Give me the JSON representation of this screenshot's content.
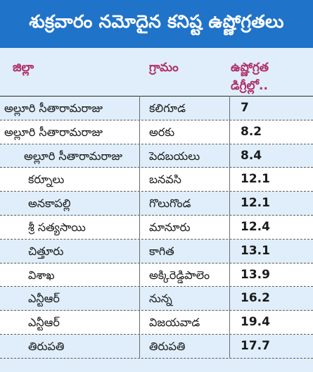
{
  "title": "శుక్రవారం నమోదైన కనిష్ట ఉష్ణోగ్రతలు",
  "headers": {
    "district": "జిల్లా",
    "village": "గ్రామం",
    "temp_line1": "ఉష్ణోగ్రత",
    "temp_line2": "డిగ్రీల్లో.."
  },
  "rows": [
    {
      "district": "అల్లూరి సీతారామరాజు",
      "village": "కలిగూడ",
      "temp": "7"
    },
    {
      "district": "అల్లూరి సీతారామరాజు",
      "village": "అరకు",
      "temp": "8.2"
    },
    {
      "district": "అల్లూరి సీతారామరాజు",
      "village": "పెదబయలు",
      "temp": "8.4"
    },
    {
      "district": "కర్నూలు",
      "village": "బనవసి",
      "temp": "12.1"
    },
    {
      "district": "అనకాపల్లి",
      "village": "గొలుగొండ",
      "temp": "12.1"
    },
    {
      "district": "శ్రీ సత్యసాయి",
      "village": "మానూరు",
      "temp": "12.4"
    },
    {
      "district": "చిత్తూరు",
      "village": "కాగిత",
      "temp": "13.1"
    },
    {
      "district": "విశాఖ",
      "village": "అక్కిరెడ్డిపాలెం",
      "temp": "13.9"
    },
    {
      "district": "ఎన్టీఆర్",
      "village": "నున్న",
      "temp": "16.2"
    },
    {
      "district": "ఎన్టీఆర్",
      "village": "విజయవాడ",
      "temp": "19.4"
    },
    {
      "district": "తిరుపతి",
      "village": "తిరుపతి",
      "temp": "17.7"
    }
  ],
  "colors": {
    "title_bg": "#1f73c9",
    "header_text": "#b0306b",
    "row_alt": "#dfeefa"
  }
}
